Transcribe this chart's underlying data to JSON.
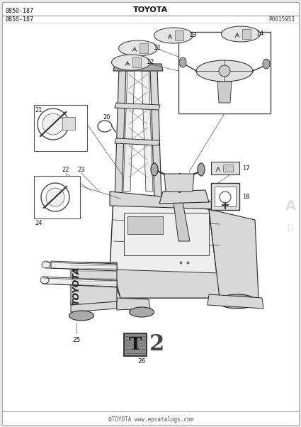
{
  "bg_color": "#e8e8e8",
  "page_bg": "#ffffff",
  "title_top": "TOYOTA",
  "part_number_tl": "0850-187",
  "part_number_2": "0850-187",
  "part_number_right": "P0015953",
  "footer_text": "©TOYOTA www.epcatalogs.com",
  "lc": "#2a2a2a",
  "lc_light": "#888888",
  "fill_body": "#d8d8d8",
  "fill_light": "#eeeeee",
  "fill_dark": "#aaaaaa"
}
